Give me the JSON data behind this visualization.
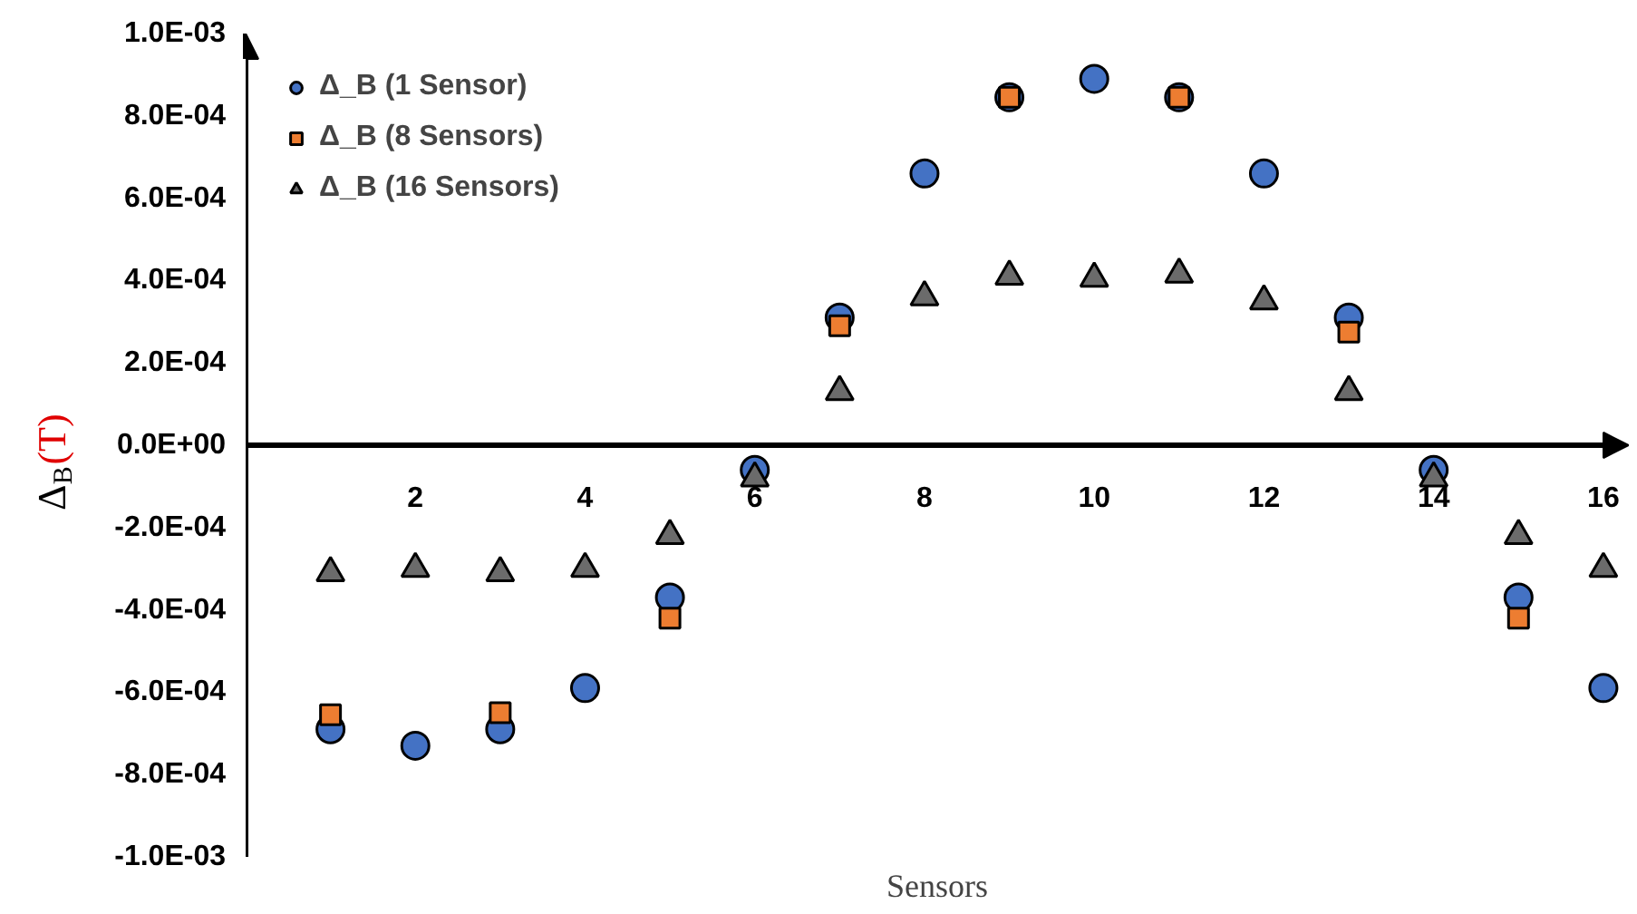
{
  "chart_data": {
    "type": "scatter",
    "xlabel": "Sensors",
    "ylabel": "Δ$_{B}$(T)",
    "xlim": [
      0,
      16.3
    ],
    "xticks": [
      2,
      4,
      6,
      8,
      10,
      12,
      14,
      16
    ],
    "ylim": [
      -0.001,
      0.001
    ],
    "yticks": [
      {
        "value": -0.001,
        "label": "-1.0E-03"
      },
      {
        "value": -0.0008,
        "label": "-8.0E-04"
      },
      {
        "value": -0.0006,
        "label": "-6.0E-04"
      },
      {
        "value": -0.0004,
        "label": "-4.0E-04"
      },
      {
        "value": -0.0002,
        "label": "-2.0E-04"
      },
      {
        "value": 0,
        "label": "0.0E+00"
      },
      {
        "value": 0.0002,
        "label": "2.0E-04"
      },
      {
        "value": 0.0004,
        "label": "4.0E-04"
      },
      {
        "value": 0.0006,
        "label": "6.0E-04"
      },
      {
        "value": 0.0008,
        "label": "8.0E-04"
      },
      {
        "value": 0.001,
        "label": "1.0E-03"
      }
    ],
    "grid": false,
    "legend": "top left",
    "series": [
      {
        "name": "Δ_B (1 Sensor)",
        "color": "#4472c4",
        "marker": "circle",
        "x": [
          1,
          2,
          3,
          4,
          5,
          6,
          7,
          8,
          9,
          10,
          11,
          12,
          13,
          14,
          15,
          16
        ],
        "values": [
          -0.00069,
          -0.00073,
          -0.00069,
          -0.00059,
          -0.00037,
          -6e-05,
          0.00031,
          0.00066,
          0.000845,
          0.00089,
          0.000845,
          0.00066,
          0.00031,
          -6e-05,
          -0.00037,
          -0.00059
        ]
      },
      {
        "name": "Δ_B (8 Sensors)",
        "color": "#ed7d31",
        "marker": "square",
        "x": [
          1,
          3,
          5,
          7,
          9,
          11,
          13,
          15
        ],
        "values": [
          -0.000655,
          -0.00065,
          -0.00042,
          0.00029,
          0.000845,
          0.000845,
          0.000275,
          -0.00042
        ]
      },
      {
        "name": "Δ_B (16 Sensors)",
        "color": "#6b6b6b",
        "marker": "triangle",
        "x": [
          1,
          2,
          3,
          4,
          5,
          6,
          7,
          8,
          9,
          10,
          11,
          12,
          13,
          14,
          15,
          16
        ],
        "values": [
          -0.00031,
          -0.0003,
          -0.00031,
          -0.0003,
          -0.00022,
          -8e-05,
          0.00013,
          0.00036,
          0.00041,
          0.000405,
          0.000415,
          0.00035,
          0.00013,
          -8e-05,
          -0.00022,
          -0.0003
        ]
      }
    ]
  }
}
